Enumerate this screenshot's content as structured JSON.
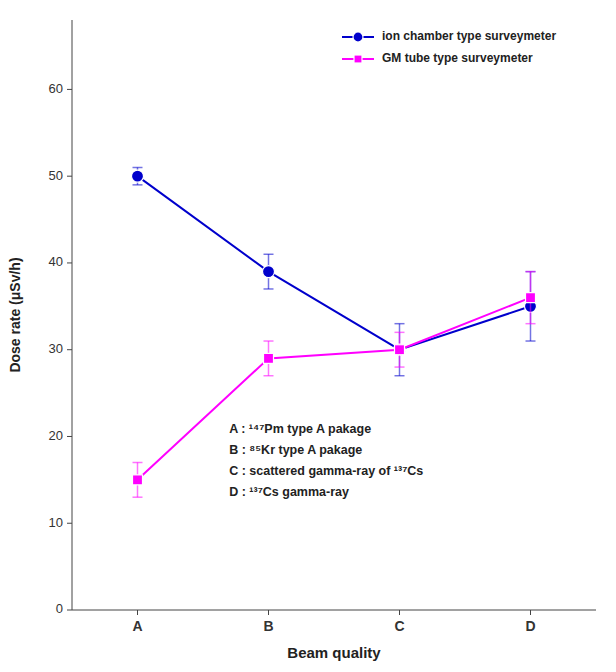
{
  "chart_data": {
    "type": "line",
    "xlabel": "Beam quality",
    "ylabel": "Dose rate (μSv/h)",
    "categories": [
      "A",
      "B",
      "C",
      "D"
    ],
    "series": [
      {
        "name": "ion chamber type surveymeter",
        "color": "#0000CC",
        "marker": "circle",
        "values": [
          50,
          39,
          30,
          35
        ],
        "errors": [
          1,
          2,
          3,
          4
        ]
      },
      {
        "name": "GM tube type surveymeter",
        "color": "#FF00FF",
        "marker": "square",
        "values": [
          15,
          29,
          30,
          36
        ],
        "errors": [
          2,
          2,
          2,
          3
        ]
      }
    ],
    "ylim": [
      0,
      68
    ],
    "yticks": [
      0,
      10,
      20,
      30,
      40,
      50,
      60
    ],
    "grid": false,
    "legend": "upper right",
    "annotations": [
      "A :  ¹⁴⁷Pm type A pakage",
      "B :  ⁸⁵Kr type A pakage",
      "C :  scattered gamma-ray of ¹³⁷Cs",
      "D :  ¹³⁷Cs gamma-ray"
    ]
  }
}
